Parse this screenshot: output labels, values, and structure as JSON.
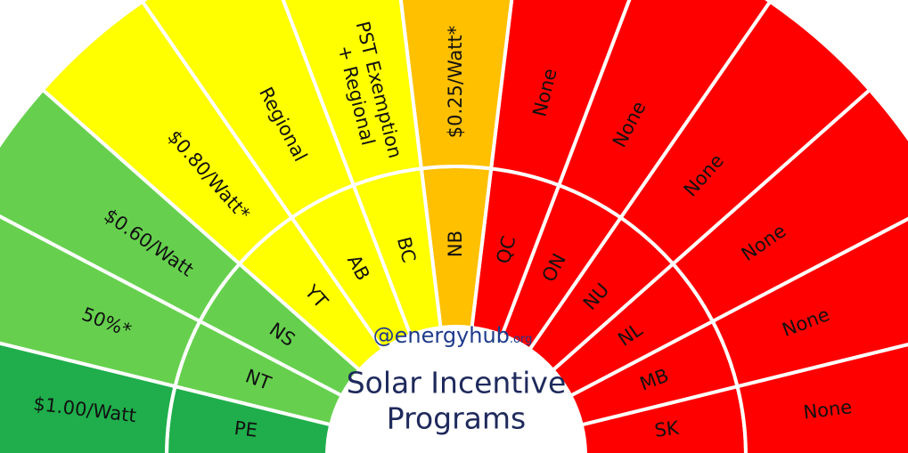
{
  "title_lines": [
    "Solar Incentive",
    "Programs"
  ],
  "brand": "@energyhub",
  "brand_suffix": ".org",
  "segments": [
    {
      "province": "PE",
      "incentive_lines": [
        "$1.00/Watt"
      ],
      "color": "#1fae4b"
    },
    {
      "province": "NT",
      "incentive_lines": [
        "50%*"
      ],
      "color": "#66d04e"
    },
    {
      "province": "NS",
      "incentive_lines": [
        "$0.60/Watt"
      ],
      "color": "#66d04e"
    },
    {
      "province": "YT",
      "incentive_lines": [
        "$0.80/Watt*"
      ],
      "color": "#ffff00"
    },
    {
      "province": "AB",
      "incentive_lines": [
        "Regional"
      ],
      "color": "#ffff00"
    },
    {
      "province": "BC",
      "incentive_lines": [
        "PST Exemption",
        "+ Regional"
      ],
      "color": "#ffff00"
    },
    {
      "province": "NB",
      "incentive_lines": [
        "$0.25/Watt*"
      ],
      "color": "#ffc000"
    },
    {
      "province": "QC",
      "incentive_lines": [
        "None"
      ],
      "color": "#ff0000"
    },
    {
      "province": "ON",
      "incentive_lines": [
        "None"
      ],
      "color": "#ff0000"
    },
    {
      "province": "NU",
      "incentive_lines": [
        "None"
      ],
      "color": "#ff0000"
    },
    {
      "province": "NL",
      "incentive_lines": [
        "None"
      ],
      "color": "#ff0000"
    },
    {
      "province": "MB",
      "incentive_lines": [
        "None"
      ],
      "color": "#ff0000"
    },
    {
      "province": "SK",
      "incentive_lines": [
        "None"
      ],
      "color": "#ff0000"
    }
  ]
}
